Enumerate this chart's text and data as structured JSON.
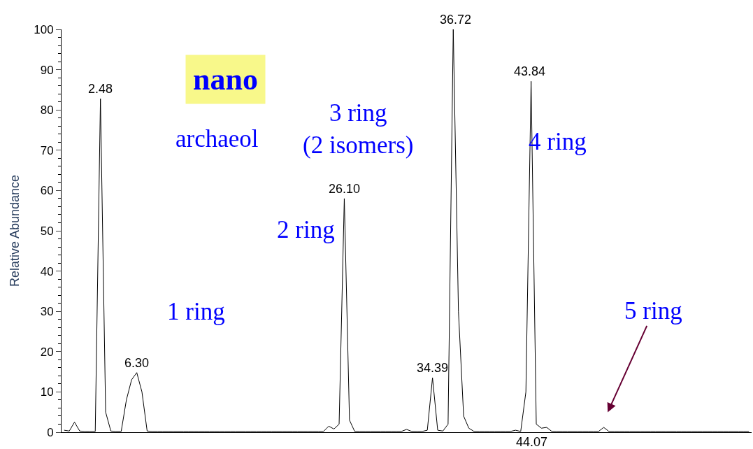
{
  "chart_data": {
    "type": "line",
    "ylabel": "Relative Abundance",
    "categories": [
      null,
      null,
      null,
      null,
      null,
      null,
      null,
      null,
      null,
      null,
      null,
      null,
      null,
      null,
      null,
      null,
      null,
      null,
      null,
      null,
      null,
      null,
      null,
      null,
      null,
      null,
      null,
      null,
      null,
      null,
      null,
      null,
      null,
      null,
      null,
      null,
      null,
      null,
      null,
      null,
      null,
      null,
      null,
      null,
      null,
      null,
      null,
      null,
      null,
      null,
      null,
      null,
      null,
      null,
      null,
      null,
      null,
      null,
      null,
      null,
      null,
      null,
      null,
      null,
      null,
      null,
      null,
      null,
      null,
      null,
      null,
      null,
      null,
      null,
      null,
      null,
      null,
      null,
      null,
      null,
      null,
      null,
      null,
      null,
      null,
      null,
      null,
      null,
      null,
      null,
      null,
      null,
      null,
      null,
      null,
      null,
      null,
      null,
      null,
      null,
      null,
      null,
      null,
      null,
      null,
      null,
      null,
      null,
      null,
      null,
      null,
      null,
      null,
      null,
      null,
      null,
      null,
      null,
      null,
      null,
      null,
      null,
      null,
      null,
      null,
      null,
      null,
      null,
      null,
      null,
      null,
      null,
      null
    ],
    "series": [
      {
        "color": "#000000",
        "values": [
          0.5,
          0.3,
          2.5,
          0.3,
          0.2,
          0.2,
          0.2,
          82.8,
          5,
          0.3,
          0.2,
          0.2,
          8,
          13,
          14.8,
          10,
          0.3,
          0.2,
          0.2,
          0.2,
          0.2,
          0.2,
          0.2,
          0.2,
          0.2,
          0.2,
          0.2,
          0.2,
          0.2,
          0.2,
          0.2,
          0.2,
          0.2,
          0.2,
          0.2,
          0.2,
          0.2,
          0.2,
          0.2,
          0.2,
          0.2,
          0.2,
          0.2,
          0.2,
          0.2,
          0.2,
          0.2,
          0.2,
          0.2,
          0.2,
          0.2,
          1.5,
          0.8,
          2,
          58,
          3,
          0.2,
          0.2,
          0.2,
          0.2,
          0.2,
          0.2,
          0.2,
          0.2,
          0.2,
          0.2,
          0.7,
          0.2,
          0.2,
          0.2,
          0.5,
          13.5,
          0.5,
          0.3,
          2,
          100,
          30,
          4,
          1,
          0.2,
          0.2,
          0.2,
          0.2,
          0.2,
          0.2,
          0.2,
          0.2,
          0.5,
          0.2,
          10,
          87.1,
          2,
          1,
          1.2,
          0.2,
          0.2,
          0.2,
          0.2,
          0.2,
          0.2,
          0.2,
          0.2,
          0.2,
          0.2,
          1.2,
          0.2,
          0.2,
          0.2,
          0.2,
          0.2,
          0.2,
          0.2,
          0.2,
          0.2,
          0.2,
          0.2,
          0.2,
          0.2,
          0.2,
          0.2,
          0.2,
          0.2,
          0.2,
          0.2,
          0.2,
          0.2,
          0.2,
          0.2,
          0.2,
          0.2,
          0.2,
          0.2,
          0.2
        ]
      }
    ],
    "ylim": [
      0,
      100
    ],
    "yticks": [
      0,
      10,
      20,
      30,
      40,
      50,
      60,
      70,
      80,
      90,
      100
    ],
    "tick_labels": "y",
    "marker": "none",
    "line_style": "solid",
    "annotations": [
      {
        "text": "2.48",
        "y": 82.8
      },
      {
        "text": "6.30",
        "y": 14.8
      },
      {
        "text": "26.10",
        "y": 58
      },
      {
        "text": "34.39",
        "y": 13.5
      },
      {
        "text": "36.72",
        "y": 100
      },
      {
        "text": "43.84",
        "y": 87.1
      },
      "44.07",
      "nano",
      "archaeol",
      "1 ring",
      "2 ring",
      "3 ring\n(2 isomers)",
      "4 ring",
      "5 ring"
    ]
  }
}
